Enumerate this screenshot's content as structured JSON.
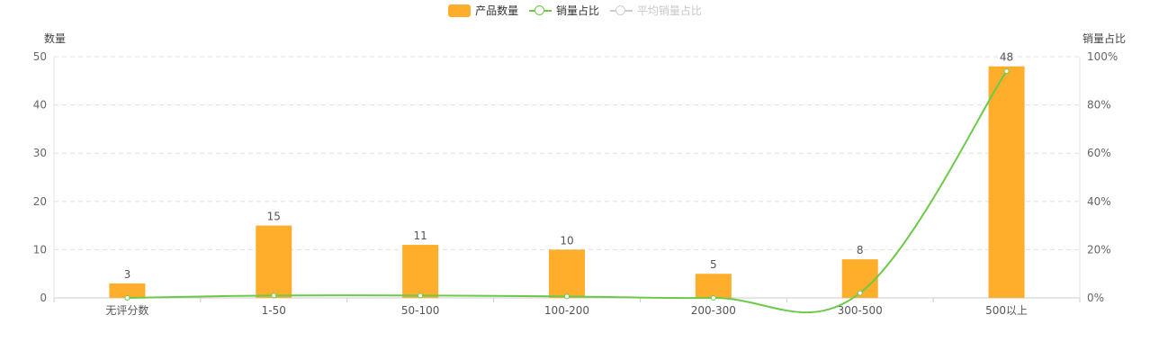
{
  "legend": {
    "items": [
      {
        "label": "产品数量",
        "kind": "bar",
        "color": "#ffae2b",
        "active": true
      },
      {
        "label": "销量占比",
        "kind": "line",
        "color": "#6cc94a",
        "active": true
      },
      {
        "label": "平均销量占比",
        "kind": "line",
        "color": "#cccccc",
        "active": false
      }
    ]
  },
  "chart_data": {
    "type": "bar",
    "categories": [
      "无评分数",
      "1-50",
      "50-100",
      "100-200",
      "200-300",
      "300-500",
      "500以上"
    ],
    "series": [
      {
        "name": "产品数量",
        "type": "bar",
        "axis": "left",
        "color": "#ffae2b",
        "values": [
          3,
          15,
          11,
          10,
          5,
          8,
          48
        ]
      },
      {
        "name": "销量占比",
        "type": "line",
        "axis": "right",
        "color": "#6cc94a",
        "values": [
          0,
          1,
          1,
          0.6,
          0,
          2,
          94
        ]
      }
    ],
    "ylabel": "数量",
    "ylabel_right": "销量占比",
    "ylim": [
      0,
      50
    ],
    "yticks": [
      0,
      10,
      20,
      30,
      40,
      50
    ],
    "ylim_right": [
      0,
      100
    ],
    "yticks_right": [
      "0%",
      "20%",
      "40%",
      "60%",
      "80%",
      "100%"
    ],
    "grid": true,
    "legend_position": "top-center"
  }
}
